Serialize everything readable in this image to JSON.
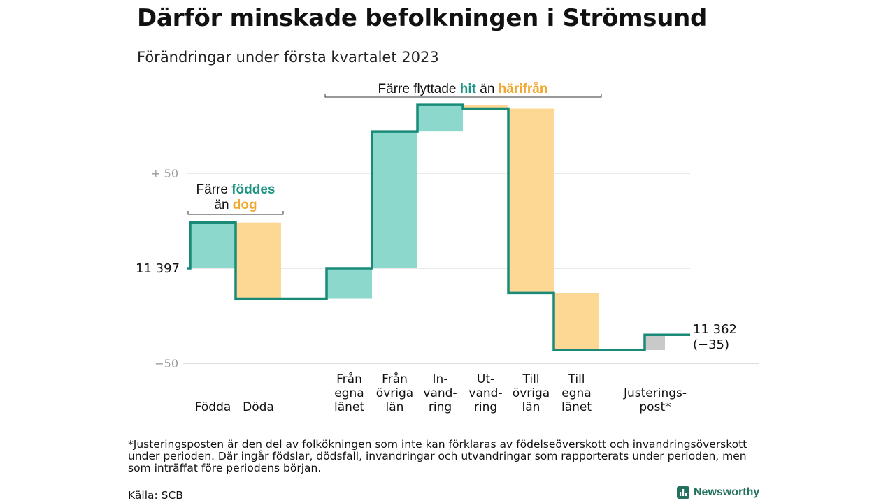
{
  "title": "Därför minskade befolkningen i Strömsund",
  "subtitle": "Förändringar under första kvartalet 2023",
  "colors": {
    "teal": "#1e9484",
    "teal_fill": "#8dd8cc",
    "orange": "#f0a830",
    "orange_fill": "#fcd894",
    "gray_fill": "#c9c9c9",
    "line": "#1a8a78",
    "grid": "#dddddd"
  },
  "chart_data": {
    "type": "bar",
    "subtype": "waterfall",
    "start_value": 11397,
    "end_value": 11362,
    "start_label": "11 397",
    "end_label": "11 362",
    "end_change_label": "(−35)",
    "ylim": [
      -50,
      85
    ],
    "ytick_labels": [
      {
        "value": 50,
        "label": "+ 50"
      },
      {
        "value": -50,
        "label": "−50"
      }
    ],
    "gridlines": [
      -50,
      0,
      50
    ],
    "categories": [
      {
        "label": [
          "Födda"
        ],
        "change": 24,
        "kind": "in"
      },
      {
        "label": [
          "Döda"
        ],
        "change": -40,
        "kind": "out"
      },
      {
        "label": [
          "Från",
          "egna",
          "länet"
        ],
        "change": 16,
        "kind": "in"
      },
      {
        "label": [
          "Från",
          "övriga",
          "län"
        ],
        "change": 72,
        "kind": "in"
      },
      {
        "label": [
          "In-",
          "vand-",
          "ring"
        ],
        "change": 14,
        "kind": "in"
      },
      {
        "label": [
          "Ut-",
          "vand-",
          "ring"
        ],
        "change": -2,
        "kind": "out"
      },
      {
        "label": [
          "Till",
          "övriga",
          "län"
        ],
        "change": -97,
        "kind": "out"
      },
      {
        "label": [
          "Till",
          "egna",
          "länet"
        ],
        "change": -30,
        "kind": "out"
      },
      {
        "label": [
          "Justerings-",
          "post*"
        ],
        "change": 8,
        "kind": "adjust"
      }
    ],
    "annotations": [
      {
        "prefix": "Färre ",
        "word1": "föddes",
        "line2": "än ",
        "word2": "dog"
      },
      {
        "prefix": "Färre flyttade ",
        "word1": "hit",
        "line2": " än ",
        "word2": "härifrån"
      }
    ]
  },
  "footnote": "*Justeringsposten är den del av folkökningen som inte kan förklaras av födelseöverskott och invandringsöverskott under perioden. Där ingår födslar, dödsfall, invandringar och utvandringar som rapporterats under perioden, men som inträffat före periodens början.",
  "source": "Källa: SCB",
  "logo": {
    "text": "Newsworthy",
    "icon": "bar-chart-logo-icon"
  }
}
